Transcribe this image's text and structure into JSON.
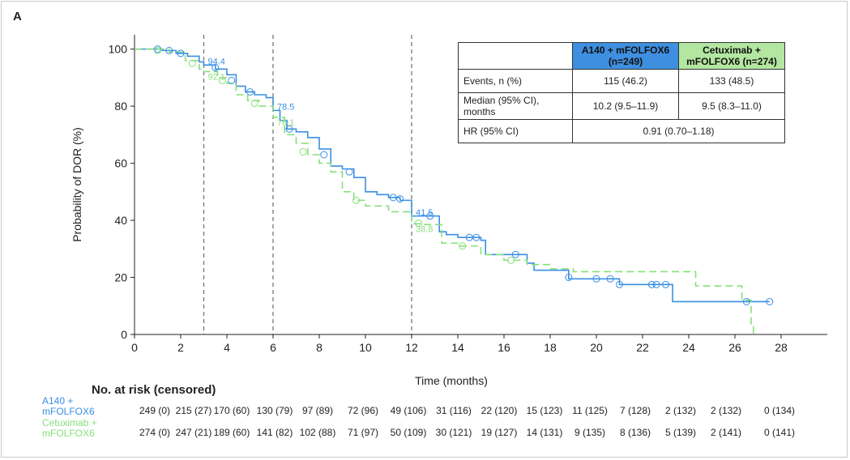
{
  "panel_label": "A",
  "colors": {
    "a140": "#3a8fe5",
    "cetux": "#86e07a"
  },
  "chart_data": {
    "type": "line",
    "xlabel": "Time (months)",
    "ylabel": "Probability of DOR (%)",
    "xlim": [
      0,
      30
    ],
    "ylim": [
      0,
      105
    ],
    "xticks": [
      0,
      2,
      4,
      6,
      8,
      10,
      12,
      14,
      16,
      18,
      20,
      22,
      24,
      26,
      28
    ],
    "yticks": [
      0,
      20,
      40,
      60,
      80,
      100
    ],
    "reference_lines_x": [
      3,
      6,
      12
    ],
    "annotations": [
      {
        "x": 3,
        "y": 94.4,
        "text": "94.4",
        "series": 0
      },
      {
        "x": 3,
        "y": 92.1,
        "text": "92.1",
        "series": 1
      },
      {
        "x": 6,
        "y": 78.5,
        "text": "78.5",
        "series": 0
      },
      {
        "x": 6,
        "y": 76.1,
        "text": "76.1",
        "series": 1
      },
      {
        "x": 12,
        "y": 41.5,
        "text": "41.5",
        "series": 0
      },
      {
        "x": 12,
        "y": 38.8,
        "text": "38.8",
        "series": 1
      }
    ],
    "series": [
      {
        "name": "A140 + mFOLFOX6",
        "points": [
          [
            0,
            100
          ],
          [
            0.5,
            100
          ],
          [
            1.2,
            99.5
          ],
          [
            1.8,
            98.5
          ],
          [
            2.3,
            97.5
          ],
          [
            2.8,
            95.5
          ],
          [
            3,
            94.4
          ],
          [
            3.5,
            93
          ],
          [
            4,
            91
          ],
          [
            4.4,
            87
          ],
          [
            4.8,
            85
          ],
          [
            5.2,
            84
          ],
          [
            5.7,
            83
          ],
          [
            6,
            78.5
          ],
          [
            6.3,
            75
          ],
          [
            6.6,
            72
          ],
          [
            7,
            71
          ],
          [
            7.5,
            69
          ],
          [
            8,
            65
          ],
          [
            8.5,
            59
          ],
          [
            9,
            58
          ],
          [
            9.5,
            55
          ],
          [
            10,
            50
          ],
          [
            10.5,
            49
          ],
          [
            11,
            48
          ],
          [
            11.5,
            47
          ],
          [
            12,
            41.5
          ],
          [
            12.5,
            41.5
          ],
          [
            13,
            41.5
          ],
          [
            13.2,
            36
          ],
          [
            13.5,
            35
          ],
          [
            14,
            34
          ],
          [
            15,
            33
          ],
          [
            15.2,
            28
          ],
          [
            16,
            28
          ],
          [
            17,
            25
          ],
          [
            17.3,
            22.5
          ],
          [
            18,
            22.5
          ],
          [
            18.8,
            19.5
          ],
          [
            20,
            19.5
          ],
          [
            21,
            17.5
          ],
          [
            22,
            17.5
          ],
          [
            23,
            17.5
          ],
          [
            23.3,
            11.5
          ],
          [
            25,
            11.5
          ],
          [
            26,
            11.5
          ],
          [
            27.5,
            11.5
          ]
        ],
        "censored": [
          [
            1,
            100
          ],
          [
            1.5,
            99.5
          ],
          [
            2,
            98.5
          ],
          [
            3.5,
            93.5
          ],
          [
            4.2,
            89
          ],
          [
            5,
            85
          ],
          [
            6.7,
            72
          ],
          [
            8.2,
            63
          ],
          [
            9.3,
            57
          ],
          [
            11.2,
            48
          ],
          [
            11.5,
            47.5
          ],
          [
            12.8,
            41.5
          ],
          [
            14.5,
            34
          ],
          [
            14.8,
            34
          ],
          [
            16.5,
            28
          ],
          [
            18.8,
            20
          ],
          [
            20,
            19.5
          ],
          [
            20.6,
            19.5
          ],
          [
            21,
            17.5
          ],
          [
            22.4,
            17.5
          ],
          [
            22.6,
            17.5
          ],
          [
            23,
            17.5
          ],
          [
            26.5,
            11.5
          ],
          [
            27.5,
            11.5
          ]
        ]
      },
      {
        "name": "Cetuximab + mFOLFOX6",
        "points": [
          [
            0,
            100
          ],
          [
            0.7,
            100
          ],
          [
            1.5,
            99
          ],
          [
            2.2,
            96
          ],
          [
            2.8,
            93
          ],
          [
            3,
            92.1
          ],
          [
            3.6,
            90
          ],
          [
            4,
            88
          ],
          [
            4.4,
            84
          ],
          [
            4.9,
            82
          ],
          [
            5.4,
            80
          ],
          [
            6,
            76.1
          ],
          [
            6.5,
            70
          ],
          [
            7,
            67
          ],
          [
            7.5,
            63
          ],
          [
            8,
            60
          ],
          [
            8.5,
            57
          ],
          [
            9,
            50
          ],
          [
            9.5,
            47
          ],
          [
            10,
            45
          ],
          [
            11,
            43
          ],
          [
            12,
            38.8
          ],
          [
            12.5,
            38.5
          ],
          [
            13,
            38.5
          ],
          [
            13.3,
            32
          ],
          [
            14,
            31
          ],
          [
            15,
            28
          ],
          [
            16,
            26
          ],
          [
            17,
            24.5
          ],
          [
            18,
            23
          ],
          [
            19,
            22
          ],
          [
            20,
            22
          ],
          [
            21,
            22
          ],
          [
            22,
            22
          ],
          [
            23,
            22
          ],
          [
            24.3,
            22
          ],
          [
            24.3,
            17
          ],
          [
            25,
            17
          ],
          [
            26,
            17
          ],
          [
            26.3,
            12
          ],
          [
            26.7,
            12
          ],
          [
            26.7,
            3
          ],
          [
            26.8,
            0
          ]
        ],
        "censored": [
          [
            1,
            99.5
          ],
          [
            2.5,
            95
          ],
          [
            3.8,
            89
          ],
          [
            5.2,
            81
          ],
          [
            7.3,
            64
          ],
          [
            9.6,
            47
          ],
          [
            12.3,
            39
          ],
          [
            14.2,
            31
          ],
          [
            16.3,
            26
          ]
        ]
      }
    ]
  },
  "table": {
    "col_a": "A140 + mFOLFOX6\n(n=249)",
    "col_c": "Cetuximab +\nmFOLFOX6 (n=274)",
    "rows": [
      {
        "label": "Events, n (%)",
        "a": "115 (46.2)",
        "c": "133 (48.5)"
      },
      {
        "label": "Median (95% CI),\nmonths",
        "a": "10.2 (9.5–11.9)",
        "c": "9.5 (8.3–11.0)"
      },
      {
        "label": "HR (95% CI)",
        "combined": "0.91 (0.70–1.18)"
      }
    ]
  },
  "risk": {
    "title": "No. at risk (censored)",
    "series": [
      {
        "label": "A140 +\nmFOLFOX6",
        "values": [
          "249 (0)",
          "215 (27)",
          "170 (60)",
          "130 (79)",
          "97 (89)",
          "72 (96)",
          "49 (106)",
          "31 (116)",
          "22 (120)",
          "15 (123)",
          "11 (125)",
          "7 (128)",
          "2 (132)",
          "2 (132)",
          "0 (134)"
        ]
      },
      {
        "label": "Cetuximab +\nmFOLFOX6",
        "values": [
          "274 (0)",
          "247 (21)",
          "189 (60)",
          "141 (82)",
          "102 (88)",
          "71 (97)",
          "50 (109)",
          "30 (121)",
          "19 (127)",
          "14 (131)",
          "9 (135)",
          "8 (136)",
          "5 (139)",
          "2 (141)",
          "0 (141)"
        ]
      }
    ]
  }
}
